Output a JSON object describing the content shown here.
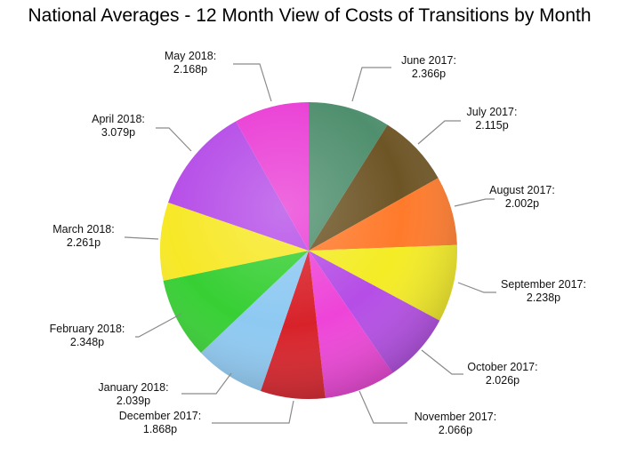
{
  "chart_data": {
    "type": "pie",
    "title": "National Averages - 12 Month View of Costs of Transitions by Month",
    "start": "top, clockwise",
    "slices": [
      {
        "label": "June 2017:",
        "value_text": "2.366p",
        "value": 2.366,
        "color": "#4f8f6e"
      },
      {
        "label": "July 2017:",
        "value_text": "2.115p",
        "value": 2.115,
        "color": "#6e5526"
      },
      {
        "label": "August 2017:",
        "value_text": "2.002p",
        "value": 2.002,
        "color": "#ff7a2b"
      },
      {
        "label": "September 2017:",
        "value_text": "2.238p",
        "value": 2.238,
        "color": "#f4ec24"
      },
      {
        "label": "October 2017:",
        "value_text": "2.026p",
        "value": 2.026,
        "color": "#b54de6"
      },
      {
        "label": "November 2017:",
        "value_text": "2.066p",
        "value": 2.066,
        "color": "#ee44d8"
      },
      {
        "label": "December 2017:",
        "value_text": "1.868p",
        "value": 1.868,
        "color": "#d8222a"
      },
      {
        "label": "January 2018:",
        "value_text": "2.039p",
        "value": 2.039,
        "color": "#8ec9f2"
      },
      {
        "label": "February 2018:",
        "value_text": "2.348p",
        "value": 2.348,
        "color": "#37cf34"
      },
      {
        "label": "March 2018:",
        "value_text": "2.261p",
        "value": 2.261,
        "color": "#f7e827"
      },
      {
        "label": "April 2018:",
        "value_text": "3.079p",
        "value": 3.079,
        "color": "#b64ee8"
      },
      {
        "label": "May 2018:",
        "value_text": "2.168p",
        "value": 2.168,
        "color": "#ea40d6"
      }
    ]
  }
}
